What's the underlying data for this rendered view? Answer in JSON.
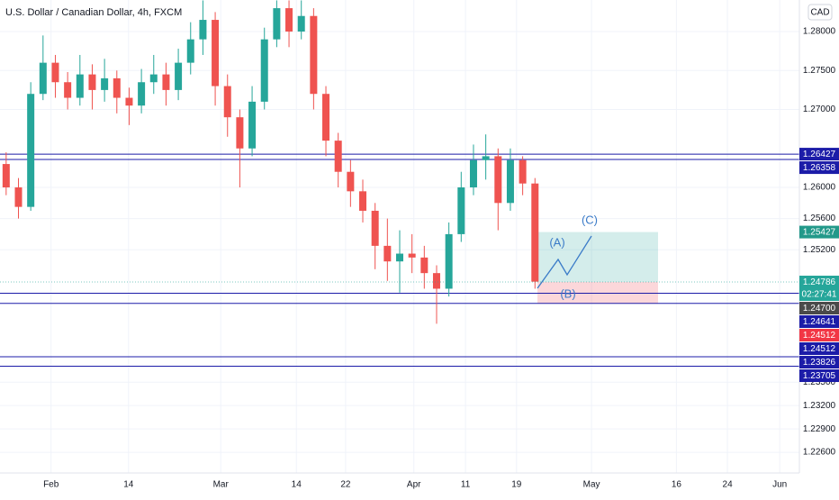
{
  "chart_data": {
    "type": "candlestick",
    "title": "U.S. Dollar / Canadian Dollar, 4h, FXCM",
    "currency": "CAD",
    "x": [
      1,
      3,
      5,
      7,
      9,
      11,
      13,
      15,
      17,
      19,
      21,
      23,
      25,
      27,
      29,
      31,
      33,
      35,
      37,
      39,
      41,
      43,
      45,
      47,
      49,
      51,
      53,
      55,
      57,
      59,
      61,
      63,
      65,
      67,
      69,
      71,
      73,
      75,
      77,
      79,
      81,
      83,
      85,
      87
    ],
    "open": [
      1.263,
      1.26,
      1.2575,
      1.272,
      1.276,
      1.2735,
      1.2715,
      1.2745,
      1.2725,
      1.274,
      1.2715,
      1.2705,
      1.2735,
      1.2745,
      1.2725,
      1.276,
      1.279,
      1.2815,
      1.273,
      1.269,
      1.265,
      1.271,
      1.279,
      1.283,
      1.28,
      1.282,
      1.272,
      1.266,
      1.262,
      1.2595,
      1.257,
      1.2525,
      1.2505,
      1.2515,
      1.251,
      1.249,
      1.247,
      1.254,
      1.26,
      1.2635,
      1.264,
      1.258,
      1.2635,
      1.2605
    ],
    "high": [
      1.2645,
      1.2612,
      1.2735,
      1.2795,
      1.277,
      1.2748,
      1.277,
      1.2758,
      1.2765,
      1.275,
      1.2728,
      1.2752,
      1.277,
      1.276,
      1.2778,
      1.2812,
      1.284,
      1.2825,
      1.2745,
      1.27,
      1.273,
      1.2805,
      1.284,
      1.284,
      1.284,
      1.283,
      1.273,
      1.267,
      1.2635,
      1.261,
      1.258,
      1.256,
      1.2545,
      1.254,
      1.2525,
      1.25,
      1.2555,
      1.262,
      1.2655,
      1.2668,
      1.265,
      1.265,
      1.264,
      1.2612
    ],
    "low": [
      1.259,
      1.256,
      1.257,
      1.2712,
      1.2715,
      1.27,
      1.2705,
      1.27,
      1.271,
      1.2695,
      1.268,
      1.2695,
      1.272,
      1.2705,
      1.2712,
      1.2745,
      1.277,
      1.2705,
      1.2665,
      1.26,
      1.264,
      1.27,
      1.278,
      1.278,
      1.279,
      1.27,
      1.264,
      1.26,
      1.2575,
      1.2555,
      1.2495,
      1.248,
      1.2465,
      1.249,
      1.247,
      1.2425,
      1.246,
      1.253,
      1.259,
      1.261,
      1.2545,
      1.257,
      1.259,
      1.247
    ],
    "close": [
      1.26,
      1.2575,
      1.272,
      1.276,
      1.2735,
      1.2715,
      1.2745,
      1.2725,
      1.274,
      1.2715,
      1.2705,
      1.2735,
      1.2745,
      1.2725,
      1.276,
      1.279,
      1.2815,
      1.273,
      1.269,
      1.265,
      1.271,
      1.279,
      1.283,
      1.28,
      1.282,
      1.272,
      1.266,
      1.262,
      1.2595,
      1.257,
      1.2525,
      1.2505,
      1.2515,
      1.251,
      1.249,
      1.247,
      1.254,
      1.26,
      1.2635,
      1.264,
      1.258,
      1.2635,
      1.2605,
      1.2479
    ],
    "up_color": "#26a69a",
    "down_color": "#ef5350",
    "xlim": [
      0,
      130
    ],
    "ylim": [
      1.22335,
      1.28405
    ],
    "grid": true,
    "xticks": [
      {
        "value": 8.3,
        "label": "Feb"
      },
      {
        "value": 20.9,
        "label": "14"
      },
      {
        "value": 35.9,
        "label": "Mar"
      },
      {
        "value": 48.2,
        "label": "14"
      },
      {
        "value": 56.2,
        "label": "22"
      },
      {
        "value": 67.3,
        "label": "Apr"
      },
      {
        "value": 75.7,
        "label": "11"
      },
      {
        "value": 84.0,
        "label": "19"
      },
      {
        "value": 96.2,
        "label": "May"
      },
      {
        "value": 110.0,
        "label": "16"
      },
      {
        "value": 118.3,
        "label": "24"
      },
      {
        "value": 126.8,
        "label": "Jun"
      }
    ],
    "yticks": [
      {
        "value": 1.28,
        "label": "1.28000"
      },
      {
        "value": 1.275,
        "label": "1.27500"
      },
      {
        "value": 1.27,
        "label": "1.27000"
      },
      {
        "value": 1.26,
        "label": "1.26000"
      },
      {
        "value": 1.256,
        "label": "1.25600"
      },
      {
        "value": 1.252,
        "label": "1.25200"
      },
      {
        "value": 1.235,
        "label": "1.23500"
      },
      {
        "value": 1.232,
        "label": "1.23200"
      },
      {
        "value": 1.229,
        "label": "1.22900"
      },
      {
        "value": 1.226,
        "label": "1.22600"
      }
    ],
    "levels": [
      1.26427,
      1.26358,
      1.24641,
      1.24512,
      1.23826,
      1.23705
    ],
    "level_color": "#1c1ca8",
    "price_tags": [
      {
        "price": 1.26427,
        "color": "#1c1ca8"
      },
      {
        "price": 1.26358,
        "color": "#1c1ca8"
      },
      {
        "price": 1.25427,
        "color": "#22998a"
      },
      {
        "price": 1.24786,
        "color": "#26a69a"
      },
      {
        "price": {
          "value": 1.247,
          "label": "1.24700"
        },
        "color": "#4a4a4a"
      },
      {
        "price": 1.24641,
        "color": "#1c1ca8"
      },
      {
        "price": 1.24512,
        "color": "#f23645"
      },
      {
        "price": 1.24512,
        "color": "#1c1ca8"
      },
      {
        "price": 1.23826,
        "color": "#1c1ca8"
      },
      {
        "price": 1.23705,
        "color": "#1c1ca8"
      }
    ],
    "countdown": "02:27:41",
    "position": {
      "entry": 1.24786,
      "target": 1.25427,
      "stop": 1.24512
    },
    "wave_labels": [
      "(A)",
      "(B)",
      "(C)"
    ]
  }
}
